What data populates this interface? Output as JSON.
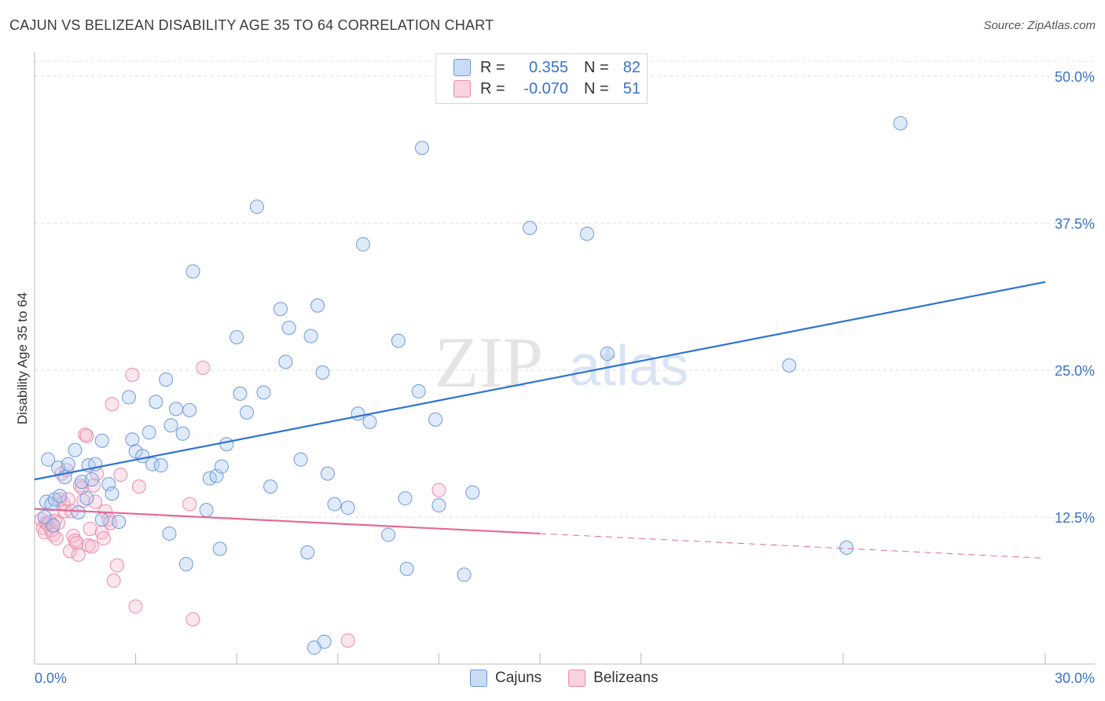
{
  "title": "CAJUN VS BELIZEAN DISABILITY AGE 35 TO 64 CORRELATION CHART",
  "source": "Source: ZipAtlas.com",
  "watermark": {
    "zip": "ZIP",
    "atlas": "atlas"
  },
  "legend": {
    "r_label": "R =",
    "n_label": "N =",
    "rows": [
      {
        "name": "Cajuns",
        "r": "0.355",
        "n": "82",
        "fill": "#aecbf2",
        "stroke": "#5d8fd6"
      },
      {
        "name": "Belizeans",
        "r": "-0.070",
        "n": "51",
        "fill": "#f8c3d3",
        "stroke": "#e87fa0"
      }
    ]
  },
  "colors": {
    "blue_line": "#2e74d0",
    "pink_line": "#e36a95",
    "axis_text": "#3a72c8",
    "grid": "#dddddd"
  },
  "chart_data": {
    "type": "scatter",
    "ylabel": "Disability Age 35 to 64",
    "xlim": [
      0,
      30
    ],
    "ylim": [
      0,
      52
    ],
    "x_tick_labels": [
      {
        "value": 0,
        "label": "0.0%"
      },
      {
        "value": 30,
        "label": "30.0%"
      }
    ],
    "y_tick_labels": [
      {
        "value": 12.5,
        "label": "12.5%"
      },
      {
        "value": 25,
        "label": "25.0%"
      },
      {
        "value": 37.5,
        "label": "37.5%"
      },
      {
        "value": 50,
        "label": "50.0%"
      }
    ],
    "grid": true,
    "legend_position": "top-center",
    "series": [
      {
        "name": "Cajuns",
        "r": 0.355,
        "n": 82,
        "trend": {
          "x": [
            0,
            30
          ],
          "y": [
            15.7,
            32.5
          ]
        },
        "points": [
          [
            0.4,
            17.4
          ],
          [
            0.35,
            13.8
          ],
          [
            0.5,
            13.6
          ],
          [
            0.6,
            14.0
          ],
          [
            0.7,
            16.7
          ],
          [
            0.75,
            14.3
          ],
          [
            0.55,
            11.8
          ],
          [
            1.0,
            17.0
          ],
          [
            1.2,
            18.2
          ],
          [
            0.9,
            15.9
          ],
          [
            1.4,
            15.5
          ],
          [
            1.3,
            12.9
          ],
          [
            1.6,
            16.9
          ],
          [
            1.7,
            15.7
          ],
          [
            1.55,
            14.1
          ],
          [
            1.8,
            17.0
          ],
          [
            2.0,
            19.0
          ],
          [
            2.2,
            15.3
          ],
          [
            2.3,
            14.5
          ],
          [
            2.5,
            12.1
          ],
          [
            2.8,
            22.7
          ],
          [
            2.9,
            19.1
          ],
          [
            3.0,
            18.1
          ],
          [
            3.2,
            17.7
          ],
          [
            3.4,
            19.7
          ],
          [
            3.5,
            17.0
          ],
          [
            3.6,
            22.3
          ],
          [
            3.75,
            16.9
          ],
          [
            3.9,
            24.2
          ],
          [
            4.05,
            20.3
          ],
          [
            4.2,
            21.7
          ],
          [
            4.4,
            19.6
          ],
          [
            4.6,
            21.6
          ],
          [
            4.5,
            8.5
          ],
          [
            4.7,
            33.4
          ],
          [
            5.1,
            13.1
          ],
          [
            5.2,
            15.8
          ],
          [
            5.4,
            16.0
          ],
          [
            5.55,
            16.8
          ],
          [
            5.7,
            18.7
          ],
          [
            5.5,
            9.8
          ],
          [
            6.0,
            27.8
          ],
          [
            6.1,
            23.0
          ],
          [
            6.3,
            21.4
          ],
          [
            6.6,
            38.9
          ],
          [
            6.8,
            23.1
          ],
          [
            7.0,
            15.1
          ],
          [
            7.3,
            30.2
          ],
          [
            7.45,
            25.7
          ],
          [
            7.55,
            28.6
          ],
          [
            7.9,
            17.4
          ],
          [
            8.1,
            9.5
          ],
          [
            8.2,
            27.9
          ],
          [
            8.4,
            30.5
          ],
          [
            8.55,
            24.8
          ],
          [
            8.7,
            16.2
          ],
          [
            8.9,
            13.6
          ],
          [
            9.3,
            13.3
          ],
          [
            9.6,
            21.3
          ],
          [
            9.75,
            35.7
          ],
          [
            9.95,
            20.6
          ],
          [
            10.5,
            11.0
          ],
          [
            10.8,
            27.5
          ],
          [
            11.0,
            14.1
          ],
          [
            11.05,
            8.1
          ],
          [
            11.4,
            23.2
          ],
          [
            11.5,
            43.9
          ],
          [
            11.9,
            20.8
          ],
          [
            12.0,
            13.5
          ],
          [
            12.75,
            7.6
          ],
          [
            13.0,
            14.6
          ],
          [
            14.7,
            37.1
          ],
          [
            16.4,
            36.6
          ],
          [
            17.0,
            26.4
          ],
          [
            22.4,
            25.4
          ],
          [
            24.1,
            9.9
          ],
          [
            25.7,
            46.0
          ],
          [
            8.6,
            1.9
          ],
          [
            8.3,
            1.4
          ],
          [
            4.0,
            11.1
          ],
          [
            2.0,
            12.3
          ],
          [
            0.3,
            12.5
          ]
        ]
      },
      {
        "name": "Belizeans",
        "r": -0.07,
        "n": 51,
        "trend": {
          "x": [
            0,
            15
          ],
          "y": [
            13.2,
            11.1
          ]
        },
        "trend_dashed": {
          "x": [
            15,
            30
          ],
          "y": [
            11.1,
            9.0
          ]
        },
        "points": [
          [
            0.2,
            12.3
          ],
          [
            0.25,
            11.6
          ],
          [
            0.3,
            11.2
          ],
          [
            0.35,
            12.0
          ],
          [
            0.4,
            11.9
          ],
          [
            0.45,
            12.1
          ],
          [
            0.5,
            11.4
          ],
          [
            0.55,
            11.0
          ],
          [
            0.6,
            12.2
          ],
          [
            0.65,
            10.7
          ],
          [
            0.7,
            12.0
          ],
          [
            0.75,
            14.0
          ],
          [
            0.8,
            16.2
          ],
          [
            0.85,
            13.7
          ],
          [
            0.9,
            13.0
          ],
          [
            0.95,
            16.5
          ],
          [
            1.0,
            14.0
          ],
          [
            1.05,
            9.6
          ],
          [
            1.1,
            13.0
          ],
          [
            1.15,
            10.9
          ],
          [
            1.2,
            10.5
          ],
          [
            1.25,
            10.3
          ],
          [
            1.3,
            9.3
          ],
          [
            1.35,
            15.2
          ],
          [
            1.4,
            15.0
          ],
          [
            1.45,
            13.9
          ],
          [
            1.5,
            19.5
          ],
          [
            1.55,
            19.4
          ],
          [
            1.6,
            10.1
          ],
          [
            1.65,
            11.5
          ],
          [
            1.7,
            10.0
          ],
          [
            1.75,
            15.2
          ],
          [
            1.8,
            13.8
          ],
          [
            1.85,
            16.2
          ],
          [
            2.0,
            11.2
          ],
          [
            2.05,
            10.7
          ],
          [
            2.1,
            13.0
          ],
          [
            2.2,
            12.3
          ],
          [
            2.25,
            12.0
          ],
          [
            2.3,
            22.1
          ],
          [
            2.35,
            7.1
          ],
          [
            2.45,
            8.4
          ],
          [
            2.55,
            16.1
          ],
          [
            2.9,
            24.6
          ],
          [
            3.0,
            4.9
          ],
          [
            3.1,
            15.1
          ],
          [
            4.6,
            13.6
          ],
          [
            4.7,
            3.8
          ],
          [
            5.0,
            25.2
          ],
          [
            9.3,
            2.0
          ],
          [
            12.0,
            14.8
          ]
        ]
      }
    ]
  }
}
